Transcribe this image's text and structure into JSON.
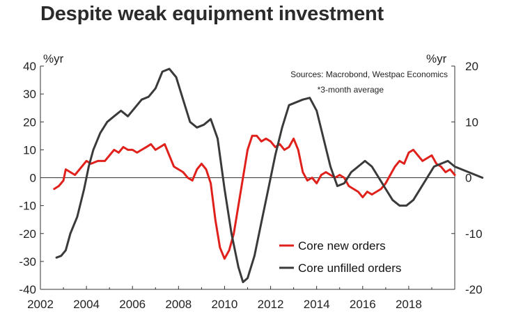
{
  "title": "Despite weak equipment investment",
  "chart_data": {
    "type": "line",
    "title": "Despite weak equipment investment",
    "sources": "Sources: Macrobond, Westpac Economics",
    "note": "*3-month average",
    "left_axis_unit": "%yr",
    "right_axis_unit": "%yr",
    "ylim_left": [
      -40,
      40
    ],
    "ylim_right": [
      -20,
      20
    ],
    "xlim": [
      2002,
      2020
    ],
    "x_ticks": [
      2002,
      2004,
      2006,
      2008,
      2010,
      2012,
      2014,
      2016,
      2018
    ],
    "x_tick_labels": [
      "2002",
      "2004",
      "2006",
      "2008",
      "2010",
      "2012",
      "2014",
      "2016",
      "2018"
    ],
    "y_left_ticks": [
      40,
      30,
      20,
      10,
      0,
      -10,
      -20,
      -30,
      -40
    ],
    "y_left_tick_labels": [
      "40",
      "30",
      "20",
      "10",
      "0",
      "-10",
      "-20",
      "-30",
      "-40"
    ],
    "y_right_ticks": [
      20,
      10,
      0,
      -10,
      -20
    ],
    "y_right_tick_labels": [
      "20",
      "10",
      "0",
      "-10",
      "-20"
    ],
    "grid": false,
    "legend_position": "bottom-right",
    "series": [
      {
        "name": "Core new orders",
        "axis": "left",
        "color": "#e0201b",
        "points": [
          [
            2002.6,
            -4
          ],
          [
            2002.8,
            -3
          ],
          [
            2003.0,
            -1
          ],
          [
            2003.1,
            3
          ],
          [
            2003.3,
            2
          ],
          [
            2003.5,
            1
          ],
          [
            2003.8,
            4
          ],
          [
            2004.0,
            6
          ],
          [
            2004.2,
            5
          ],
          [
            2004.5,
            6
          ],
          [
            2004.8,
            6
          ],
          [
            2005.0,
            8
          ],
          [
            2005.2,
            10
          ],
          [
            2005.4,
            9
          ],
          [
            2005.6,
            11
          ],
          [
            2005.8,
            10
          ],
          [
            2006.0,
            10
          ],
          [
            2006.2,
            9
          ],
          [
            2006.4,
            10
          ],
          [
            2006.6,
            11
          ],
          [
            2006.8,
            12
          ],
          [
            2007.0,
            10
          ],
          [
            2007.2,
            11
          ],
          [
            2007.4,
            12
          ],
          [
            2007.6,
            8
          ],
          [
            2007.8,
            4
          ],
          [
            2008.0,
            3
          ],
          [
            2008.2,
            2
          ],
          [
            2008.4,
            0
          ],
          [
            2008.6,
            -1
          ],
          [
            2008.8,
            3
          ],
          [
            2009.0,
            5
          ],
          [
            2009.2,
            3
          ],
          [
            2009.4,
            -2
          ],
          [
            2009.6,
            -15
          ],
          [
            2009.8,
            -25
          ],
          [
            2010.0,
            -29
          ],
          [
            2010.2,
            -26
          ],
          [
            2010.4,
            -20
          ],
          [
            2010.6,
            -10
          ],
          [
            2010.8,
            0
          ],
          [
            2011.0,
            10
          ],
          [
            2011.2,
            15
          ],
          [
            2011.4,
            15
          ],
          [
            2011.6,
            13
          ],
          [
            2011.8,
            14
          ],
          [
            2012.0,
            13
          ],
          [
            2012.2,
            11
          ],
          [
            2012.4,
            12
          ],
          [
            2012.6,
            10
          ],
          [
            2012.8,
            11
          ],
          [
            2013.0,
            14
          ],
          [
            2013.2,
            10
          ],
          [
            2013.4,
            2
          ],
          [
            2013.6,
            -1
          ],
          [
            2013.8,
            0
          ],
          [
            2014.0,
            -2
          ],
          [
            2014.2,
            1
          ],
          [
            2014.4,
            2
          ],
          [
            2014.6,
            1
          ],
          [
            2014.8,
            0
          ],
          [
            2015.0,
            1
          ],
          [
            2015.2,
            0
          ],
          [
            2015.4,
            -3
          ],
          [
            2015.6,
            -4
          ],
          [
            2015.8,
            -5
          ],
          [
            2016.0,
            -7
          ],
          [
            2016.2,
            -5
          ],
          [
            2016.4,
            -6
          ],
          [
            2016.6,
            -5
          ],
          [
            2016.8,
            -4
          ],
          [
            2017.0,
            -2
          ],
          [
            2017.2,
            1
          ],
          [
            2017.4,
            4
          ],
          [
            2017.6,
            6
          ],
          [
            2017.8,
            5
          ],
          [
            2018.0,
            9
          ],
          [
            2018.2,
            10
          ],
          [
            2018.4,
            8
          ],
          [
            2018.6,
            6
          ],
          [
            2018.8,
            7
          ],
          [
            2019.0,
            8
          ],
          [
            2019.2,
            5
          ],
          [
            2019.4,
            4
          ],
          [
            2019.6,
            2
          ],
          [
            2019.8,
            3
          ],
          [
            2020.0,
            1
          ]
        ]
      },
      {
        "name": "Core unfilled orders",
        "axis": "right",
        "color": "#3a3a3a",
        "points": [
          [
            2002.7,
            -14.3
          ],
          [
            2002.9,
            -14
          ],
          [
            2003.1,
            -13
          ],
          [
            2003.3,
            -10
          ],
          [
            2003.6,
            -7
          ],
          [
            2003.9,
            -2
          ],
          [
            2004.1,
            2
          ],
          [
            2004.3,
            5
          ],
          [
            2004.6,
            8
          ],
          [
            2004.9,
            10
          ],
          [
            2005.2,
            11
          ],
          [
            2005.5,
            12
          ],
          [
            2005.8,
            11
          ],
          [
            2006.1,
            12.5
          ],
          [
            2006.4,
            14
          ],
          [
            2006.7,
            14.5
          ],
          [
            2007.0,
            16
          ],
          [
            2007.3,
            19
          ],
          [
            2007.6,
            19.5
          ],
          [
            2007.9,
            18
          ],
          [
            2008.2,
            14
          ],
          [
            2008.5,
            10
          ],
          [
            2008.8,
            9
          ],
          [
            2009.1,
            9.5
          ],
          [
            2009.4,
            10.5
          ],
          [
            2009.7,
            7
          ],
          [
            2010.0,
            -2
          ],
          [
            2010.3,
            -10
          ],
          [
            2010.6,
            -16
          ],
          [
            2010.8,
            -18.7
          ],
          [
            2011.0,
            -18
          ],
          [
            2011.3,
            -14
          ],
          [
            2011.6,
            -8
          ],
          [
            2011.9,
            -2
          ],
          [
            2012.2,
            4
          ],
          [
            2012.5,
            9
          ],
          [
            2012.8,
            13
          ],
          [
            2013.1,
            13.5
          ],
          [
            2013.4,
            14
          ],
          [
            2013.7,
            14.3
          ],
          [
            2014.0,
            12
          ],
          [
            2014.3,
            7
          ],
          [
            2014.6,
            2
          ],
          [
            2014.9,
            -1.5
          ],
          [
            2015.2,
            -1
          ],
          [
            2015.5,
            1
          ],
          [
            2015.8,
            2
          ],
          [
            2016.1,
            3
          ],
          [
            2016.4,
            2
          ],
          [
            2016.7,
            0
          ],
          [
            2017.0,
            -2
          ],
          [
            2017.3,
            -4
          ],
          [
            2017.6,
            -5
          ],
          [
            2017.9,
            -5
          ],
          [
            2018.2,
            -4
          ],
          [
            2018.5,
            -2
          ],
          [
            2018.8,
            0
          ],
          [
            2019.1,
            2
          ],
          [
            2019.4,
            2.5
          ],
          [
            2019.7,
            3
          ],
          [
            2020.0,
            2
          ],
          [
            2020.3,
            1.5
          ],
          [
            2020.6,
            1
          ],
          [
            2020.9,
            0.5
          ],
          [
            2021.2,
            0
          ]
        ]
      }
    ]
  }
}
